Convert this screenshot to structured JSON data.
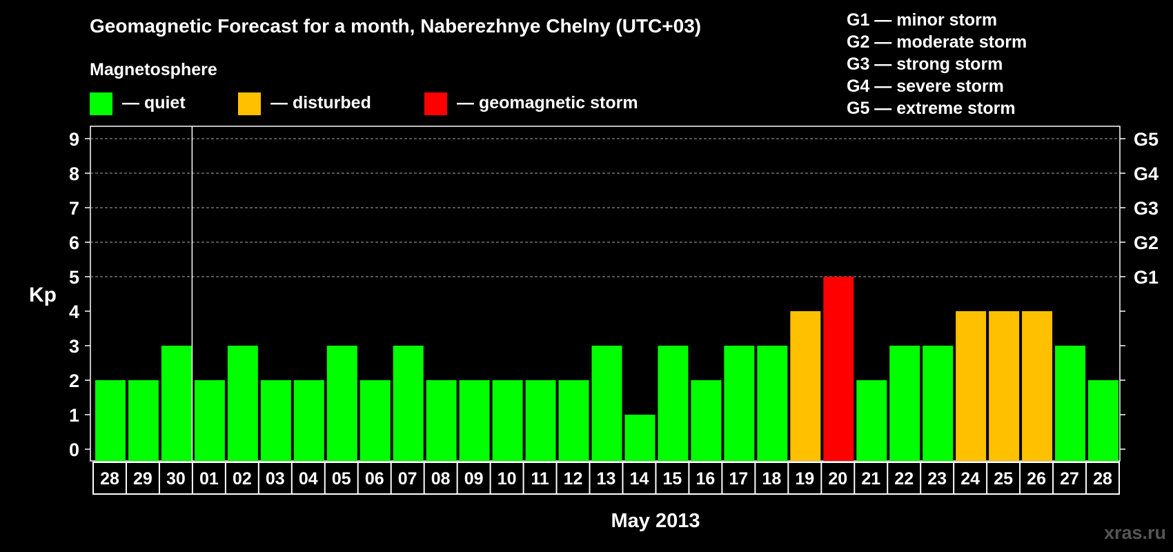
{
  "chart_data": {
    "type": "bar",
    "title": "Geomagnetic Forecast for a month, Naberezhnye Chelny (UTC+03)",
    "xlabel": "May 2013",
    "ylabel": "Kp",
    "ylim": [
      0,
      9
    ],
    "yticks": [
      "0",
      "1",
      "2",
      "3",
      "4",
      "5",
      "6",
      "7",
      "8",
      "9"
    ],
    "right_axis_labels": [
      {
        "value": 5,
        "label": "G1"
      },
      {
        "value": 6,
        "label": "G2"
      },
      {
        "value": 7,
        "label": "G3"
      },
      {
        "value": 8,
        "label": "G4"
      },
      {
        "value": 9,
        "label": "G5"
      }
    ],
    "grid": "dashed horizontal at Kp 5-9",
    "categories": [
      "28",
      "29",
      "30",
      "01",
      "02",
      "03",
      "04",
      "05",
      "06",
      "07",
      "08",
      "09",
      "10",
      "11",
      "12",
      "13",
      "14",
      "15",
      "16",
      "17",
      "18",
      "19",
      "20",
      "21",
      "22",
      "23",
      "24",
      "25",
      "26",
      "27",
      "28"
    ],
    "values": [
      2,
      2,
      3,
      2,
      3,
      2,
      2,
      3,
      2,
      3,
      2,
      2,
      2,
      2,
      2,
      3,
      1,
      3,
      2,
      3,
      3,
      4,
      5,
      2,
      3,
      3,
      4,
      4,
      4,
      3,
      2
    ],
    "month_separator_after_index": 2,
    "thresholds": {
      "disturbed": 4,
      "storm": 5
    },
    "legend_title": "Magnetosphere",
    "legend": [
      {
        "label": "— quiet",
        "color": "#00ff00"
      },
      {
        "label": "— disturbed",
        "color": "#ffc000"
      },
      {
        "label": "— geomagnetic storm",
        "color": "#ff0000"
      }
    ],
    "scale_legend": [
      "G1 — minor storm",
      "G2 — moderate storm",
      "G3 — strong storm",
      "G4 — severe storm",
      "G5 — extreme storm"
    ],
    "watermark": "xras.ru"
  }
}
